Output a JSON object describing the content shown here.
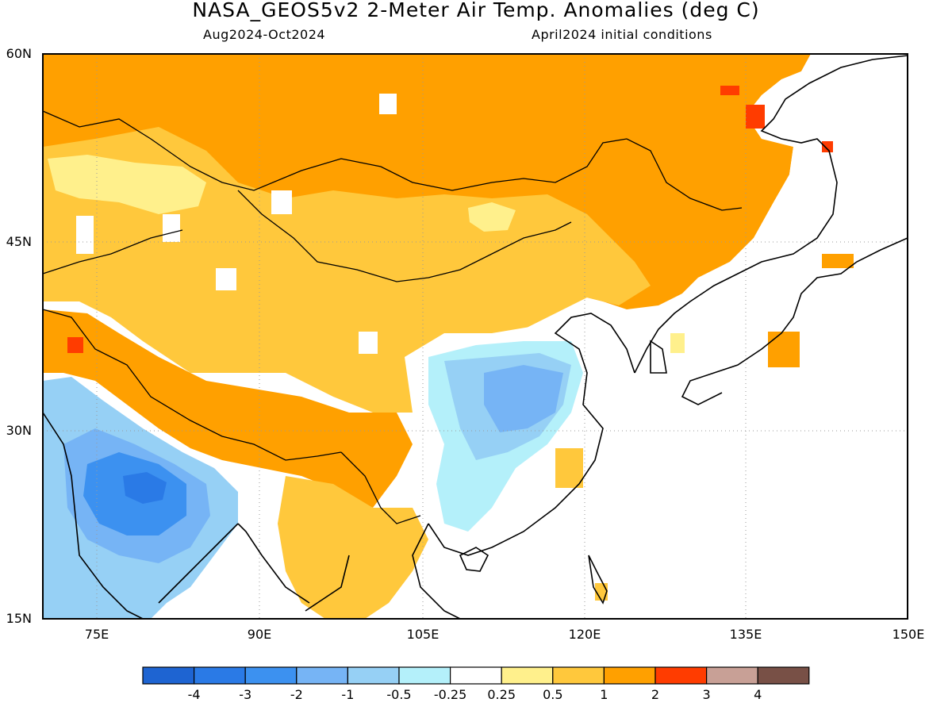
{
  "header": {
    "title": "NASA_GEOS5v2 2-Meter Air Temp. Anomalies (deg C)",
    "period": "Aug2024-Oct2024",
    "init": "April2024 initial conditions"
  },
  "axes": {
    "lat_labels": [
      "60N",
      "45N",
      "30N",
      "15N"
    ],
    "lon_labels": [
      "75E",
      "90E",
      "105E",
      "120E",
      "135E",
      "150E"
    ]
  },
  "colorbar": {
    "colors": [
      "#1e64d2",
      "#2a7ae6",
      "#3c91f0",
      "#76b4f5",
      "#96d0f5",
      "#b4f0fa",
      "#ffffff",
      "#fff08c",
      "#ffc83c",
      "#ffa000",
      "#ff3c00",
      "#c8a096",
      "#785046"
    ],
    "labels": [
      "-4",
      "-3",
      "-2",
      "-1",
      "-0.5",
      "-0.25",
      "0.25",
      "0.5",
      "1",
      "2",
      "3",
      "4"
    ]
  }
}
